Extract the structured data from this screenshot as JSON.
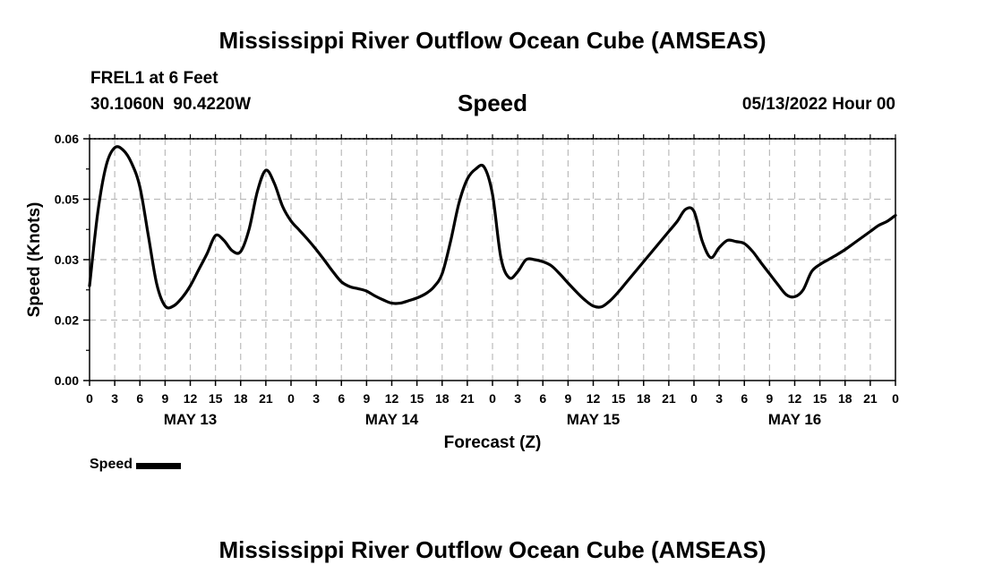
{
  "header": {
    "title": "Mississippi River Outflow Ocean Cube (AMSEAS)",
    "station": "FREL1 at 6 Feet",
    "lat": "30.1060N",
    "lon": "90.4220W",
    "variable": "Speed",
    "datetime": "05/13/2022 Hour 00"
  },
  "footer": {
    "title": "Mississippi River Outflow Ocean Cube (AMSEAS)"
  },
  "legend": {
    "label": "Speed"
  },
  "chart_data": {
    "type": "line",
    "title": "Speed",
    "xlabel": "Forecast (Z)",
    "ylabel": "Speed (Knots)",
    "xlim": [
      0,
      96
    ],
    "ylim": [
      0.0,
      0.06
    ],
    "yticks": [
      "0.00",
      "0.02",
      "0.03",
      "0.05",
      "0.06"
    ],
    "xtick_labels": [
      "0",
      "3",
      "6",
      "9",
      "12",
      "15",
      "18",
      "21",
      "0",
      "3",
      "6",
      "9",
      "12",
      "15",
      "18",
      "21",
      "0",
      "3",
      "6",
      "9",
      "12",
      "15",
      "18",
      "21",
      "0",
      "3",
      "6",
      "9",
      "12",
      "15",
      "18",
      "21",
      "0"
    ],
    "day_labels": [
      "MAY 13",
      "MAY 14",
      "MAY 15",
      "MAY 16"
    ],
    "grid": true,
    "legend_position": "bottom-left",
    "colors": {
      "line": "#000000",
      "grid": "#bbbbbb"
    },
    "series": [
      {
        "name": "Speed",
        "x": [
          0,
          1,
          2,
          3,
          4,
          5,
          6,
          7,
          8,
          9,
          10,
          11,
          12,
          13,
          14,
          15,
          16,
          17,
          18,
          19,
          20,
          21,
          22,
          23,
          24,
          25,
          26,
          27,
          28,
          29,
          30,
          31,
          32,
          33,
          34,
          35,
          36,
          37,
          38,
          39,
          40,
          41,
          42,
          43,
          44,
          45,
          46,
          47,
          48,
          49,
          50,
          51,
          52,
          53,
          54,
          55,
          56,
          57,
          58,
          59,
          60,
          61,
          62,
          63,
          64,
          65,
          66,
          67,
          68,
          69,
          70,
          71,
          72,
          73,
          74,
          75,
          76,
          77,
          78,
          79,
          80,
          81,
          82,
          83,
          84,
          85,
          86,
          87,
          88,
          89,
          90,
          91,
          92,
          93,
          94,
          95,
          96
        ],
        "values": [
          0.0235,
          0.042,
          0.0535,
          0.0578,
          0.0572,
          0.054,
          0.048,
          0.036,
          0.024,
          0.0185,
          0.0185,
          0.0205,
          0.0235,
          0.0275,
          0.0315,
          0.036,
          0.0348,
          0.0322,
          0.032,
          0.0375,
          0.047,
          0.0522,
          0.049,
          0.0432,
          0.0396,
          0.0373,
          0.035,
          0.0325,
          0.0298,
          0.027,
          0.0245,
          0.0233,
          0.0228,
          0.0222,
          0.021,
          0.02,
          0.0192,
          0.0192,
          0.0198,
          0.0205,
          0.0215,
          0.0232,
          0.0265,
          0.0345,
          0.044,
          0.05,
          0.0525,
          0.053,
          0.0462,
          0.0305,
          0.0255,
          0.027,
          0.03,
          0.03,
          0.0295,
          0.0285,
          0.0265,
          0.0242,
          0.022,
          0.02,
          0.0185,
          0.0183,
          0.0198,
          0.022,
          0.0245,
          0.027,
          0.0295,
          0.032,
          0.0345,
          0.037,
          0.0395,
          0.0425,
          0.042,
          0.0345,
          0.0305,
          0.033,
          0.0348,
          0.0345,
          0.034,
          0.032,
          0.0292,
          0.0265,
          0.0238,
          0.0213,
          0.0208,
          0.0225,
          0.027,
          0.0288,
          0.03,
          0.0312,
          0.0325,
          0.034,
          0.0355,
          0.037,
          0.0385,
          0.0395,
          0.041
        ]
      }
    ]
  }
}
